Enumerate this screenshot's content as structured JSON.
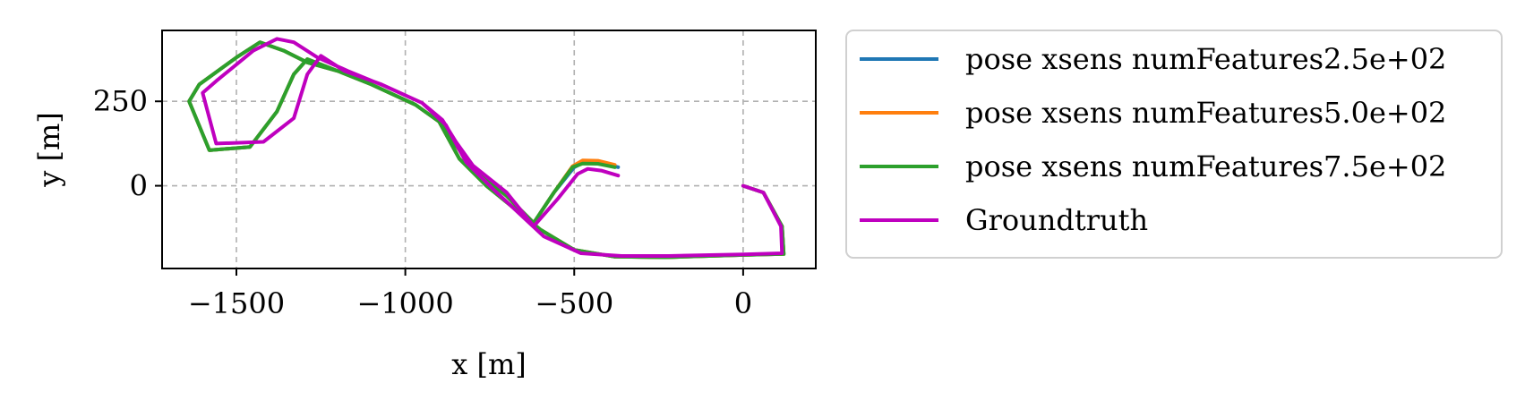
{
  "chart_data": {
    "type": "line",
    "xlabel": "x [m]",
    "ylabel": "y [m]",
    "xlim": [
      -1720,
      215
    ],
    "ylim": [
      -245,
      460
    ],
    "xticks": [
      {
        "value": -1500,
        "label": "−1500"
      },
      {
        "value": -1000,
        "label": "−1000"
      },
      {
        "value": -500,
        "label": "−500"
      },
      {
        "value": 0,
        "label": "0"
      }
    ],
    "yticks": [
      {
        "value": 0,
        "label": "0"
      },
      {
        "value": 250,
        "label": "250"
      }
    ],
    "grid": true,
    "legend_position": "outside-right",
    "series": [
      {
        "name": "pose xsens numFeatures2.5e+02",
        "color": "#1f77b4",
        "points": [
          [
            -370,
            55
          ],
          [
            -420,
            68
          ],
          [
            -470,
            70
          ],
          [
            -500,
            55
          ],
          [
            -560,
            -20
          ],
          [
            -620,
            -110
          ],
          [
            -700,
            -30
          ],
          [
            -800,
            50
          ],
          [
            -850,
            120
          ],
          [
            -900,
            190
          ],
          [
            -970,
            240
          ],
          [
            -1100,
            300
          ],
          [
            -1200,
            340
          ],
          [
            -1290,
            375
          ],
          [
            -1330,
            330
          ],
          [
            -1380,
            220
          ],
          [
            -1460,
            115
          ],
          [
            -1580,
            105
          ],
          [
            -1640,
            250
          ],
          [
            -1610,
            300
          ],
          [
            -1500,
            380
          ],
          [
            -1430,
            425
          ],
          [
            -1360,
            400
          ],
          [
            -1290,
            365
          ],
          [
            -1200,
            340
          ],
          [
            -1100,
            300
          ],
          [
            -970,
            240
          ],
          [
            -900,
            190
          ],
          [
            -840,
            80
          ],
          [
            -760,
            0
          ],
          [
            -600,
            -130
          ],
          [
            -500,
            -190
          ],
          [
            -380,
            -210
          ],
          [
            -230,
            -212
          ],
          [
            0,
            -205
          ],
          [
            120,
            -202
          ],
          [
            115,
            -120
          ],
          [
            60,
            -20
          ],
          [
            0,
            0
          ]
        ]
      },
      {
        "name": "pose xsens numFeatures5.0e+02",
        "color": "#ff7f0e",
        "points": [
          [
            -380,
            62
          ],
          [
            -430,
            74
          ],
          [
            -475,
            75
          ],
          [
            -505,
            58
          ],
          [
            -560,
            -20
          ],
          [
            -620,
            -110
          ],
          [
            -700,
            -30
          ],
          [
            -800,
            50
          ],
          [
            -850,
            120
          ],
          [
            -900,
            190
          ],
          [
            -970,
            240
          ],
          [
            -1100,
            300
          ],
          [
            -1200,
            340
          ],
          [
            -1290,
            375
          ],
          [
            -1330,
            330
          ],
          [
            -1380,
            220
          ],
          [
            -1460,
            115
          ],
          [
            -1580,
            105
          ],
          [
            -1640,
            250
          ],
          [
            -1610,
            300
          ],
          [
            -1500,
            380
          ],
          [
            -1430,
            425
          ],
          [
            -1360,
            400
          ],
          [
            -1290,
            365
          ],
          [
            -1200,
            340
          ],
          [
            -1100,
            300
          ],
          [
            -970,
            240
          ],
          [
            -900,
            190
          ],
          [
            -840,
            80
          ],
          [
            -760,
            0
          ],
          [
            -600,
            -130
          ],
          [
            -500,
            -190
          ],
          [
            -380,
            -210
          ],
          [
            -230,
            -212
          ],
          [
            0,
            -205
          ],
          [
            120,
            -202
          ],
          [
            115,
            -120
          ],
          [
            60,
            -20
          ],
          [
            0,
            0
          ]
        ]
      },
      {
        "name": "pose xsens numFeatures7.5e+02",
        "color": "#2ca02c",
        "points": [
          [
            -380,
            55
          ],
          [
            -430,
            65
          ],
          [
            -475,
            66
          ],
          [
            -505,
            55
          ],
          [
            -560,
            -20
          ],
          [
            -620,
            -110
          ],
          [
            -700,
            -30
          ],
          [
            -800,
            50
          ],
          [
            -850,
            120
          ],
          [
            -900,
            190
          ],
          [
            -970,
            240
          ],
          [
            -1100,
            300
          ],
          [
            -1200,
            340
          ],
          [
            -1290,
            375
          ],
          [
            -1330,
            330
          ],
          [
            -1380,
            220
          ],
          [
            -1460,
            115
          ],
          [
            -1580,
            105
          ],
          [
            -1640,
            250
          ],
          [
            -1610,
            300
          ],
          [
            -1500,
            380
          ],
          [
            -1430,
            425
          ],
          [
            -1360,
            400
          ],
          [
            -1290,
            365
          ],
          [
            -1200,
            340
          ],
          [
            -1100,
            300
          ],
          [
            -970,
            240
          ],
          [
            -900,
            190
          ],
          [
            -840,
            80
          ],
          [
            -760,
            0
          ],
          [
            -600,
            -130
          ],
          [
            -500,
            -190
          ],
          [
            -380,
            -210
          ],
          [
            -230,
            -212
          ],
          [
            0,
            -205
          ],
          [
            120,
            -202
          ],
          [
            115,
            -120
          ],
          [
            60,
            -20
          ],
          [
            0,
            0
          ]
        ]
      },
      {
        "name": "Groundtruth",
        "color": "#bf00bf",
        "points": [
          [
            -370,
            30
          ],
          [
            -420,
            45
          ],
          [
            -460,
            50
          ],
          [
            -490,
            35
          ],
          [
            -550,
            -40
          ],
          [
            -620,
            -120
          ],
          [
            -700,
            -20
          ],
          [
            -800,
            60
          ],
          [
            -850,
            130
          ],
          [
            -890,
            195
          ],
          [
            -950,
            245
          ],
          [
            -1070,
            300
          ],
          [
            -1180,
            340
          ],
          [
            -1250,
            385
          ],
          [
            -1290,
            330
          ],
          [
            -1330,
            200
          ],
          [
            -1420,
            130
          ],
          [
            -1560,
            125
          ],
          [
            -1600,
            275
          ],
          [
            -1560,
            310
          ],
          [
            -1450,
            400
          ],
          [
            -1380,
            435
          ],
          [
            -1330,
            425
          ],
          [
            -1260,
            380
          ],
          [
            -1170,
            340
          ],
          [
            -1060,
            295
          ],
          [
            -950,
            245
          ],
          [
            -880,
            180
          ],
          [
            -820,
            70
          ],
          [
            -740,
            -10
          ],
          [
            -590,
            -150
          ],
          [
            -480,
            -200
          ],
          [
            -360,
            -208
          ],
          [
            -220,
            -208
          ],
          [
            0,
            -203
          ],
          [
            115,
            -200
          ],
          [
            112,
            -120
          ],
          [
            60,
            -20
          ],
          [
            0,
            0
          ]
        ]
      }
    ]
  }
}
